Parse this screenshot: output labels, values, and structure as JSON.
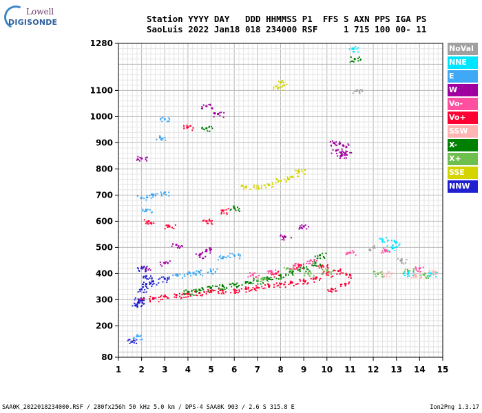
{
  "logo": {
    "line1": "Lowell",
    "line2": "DIGISONDE"
  },
  "header": {
    "row1": "Station YYYY DAY   DDD HHMMSS P1  FFS S AXN PPS IGA PS",
    "row2": "SaoLuis 2022 Jan18 018 234000 RSF     1 715 100 00- 11"
  },
  "legend": [
    {
      "label": "NoVal",
      "color": "#a0a0a0"
    },
    {
      "label": "NNE",
      "color": "#00e5ff"
    },
    {
      "label": "E",
      "color": "#3fa9f5"
    },
    {
      "label": "W",
      "color": "#a000a0"
    },
    {
      "label": "Vo-",
      "color": "#ff4fa0"
    },
    {
      "label": "Vo+",
      "color": "#ff0033"
    },
    {
      "label": "SSW",
      "color": "#ffb3b3"
    },
    {
      "label": "X-",
      "color": "#008000"
    },
    {
      "label": "X+",
      "color": "#6fbf4f"
    },
    {
      "label": "SSE",
      "color": "#d4d400"
    },
    {
      "label": "NNW",
      "color": "#2020d0"
    }
  ],
  "footer": {
    "left": "SAA0K_2022018234000.RSF / 280fx256h 50 kHz 5.0 km / DPS-4 SAA0K 903 / 2.6 S 315.8 E",
    "right": "Ion2Png 1.3.17"
  },
  "chart_data": {
    "type": "scatter",
    "xlim": [
      1,
      15
    ],
    "ylim": [
      80,
      1280
    ],
    "x_ticks": [
      1,
      2,
      3,
      4,
      5,
      6,
      7,
      8,
      9,
      10,
      11,
      12,
      13,
      14,
      15
    ],
    "y_ticks": [
      80,
      200,
      300,
      400,
      500,
      600,
      700,
      800,
      900,
      1000,
      1100,
      1280
    ],
    "grid": true,
    "legend_placement": "right",
    "series": [
      {
        "name": "Vo+",
        "color": "#ff0033",
        "points": [
          [
            2.0,
            300
          ],
          [
            2.5,
            305
          ],
          [
            3.0,
            312
          ],
          [
            3.5,
            318
          ],
          [
            4.0,
            322
          ],
          [
            4.5,
            326
          ],
          [
            5.0,
            330
          ],
          [
            5.5,
            335
          ],
          [
            6.0,
            338
          ],
          [
            6.5,
            342
          ],
          [
            7.0,
            346
          ],
          [
            7.5,
            352
          ],
          [
            8.0,
            360
          ],
          [
            8.5,
            366
          ],
          [
            9.0,
            372
          ],
          [
            9.5,
            380
          ],
          [
            10.0,
            400
          ],
          [
            10.5,
            410
          ],
          [
            11.0,
            395
          ],
          [
            10.2,
            340
          ],
          [
            10.8,
            360
          ],
          [
            9.8,
            430
          ],
          [
            8.8,
            430
          ],
          [
            7.8,
            400
          ],
          [
            4.8,
            600
          ],
          [
            5.5,
            640
          ],
          [
            3.2,
            580
          ],
          [
            4.0,
            960
          ],
          [
            2.3,
            600
          ]
        ]
      },
      {
        "name": "X-",
        "color": "#008000",
        "points": [
          [
            4.0,
            330
          ],
          [
            4.5,
            338
          ],
          [
            5.0,
            345
          ],
          [
            5.5,
            352
          ],
          [
            6.0,
            358
          ],
          [
            6.5,
            365
          ],
          [
            7.0,
            372
          ],
          [
            7.5,
            380
          ],
          [
            8.0,
            392
          ],
          [
            8.5,
            405
          ],
          [
            9.0,
            420
          ],
          [
            9.5,
            440
          ],
          [
            9.7,
            470
          ],
          [
            4.8,
            955
          ],
          [
            11.2,
            1220
          ],
          [
            6.0,
            650
          ]
        ]
      },
      {
        "name": "W",
        "color": "#a000a0",
        "points": [
          [
            2.0,
            840
          ],
          [
            10.4,
            870
          ],
          [
            10.6,
            850
          ],
          [
            10.8,
            860
          ],
          [
            10.3,
            900
          ],
          [
            10.7,
            890
          ],
          [
            4.5,
            470
          ],
          [
            4.8,
            490
          ],
          [
            3.5,
            510
          ],
          [
            9.0,
            580
          ],
          [
            8.2,
            540
          ],
          [
            5.3,
            1010
          ],
          [
            4.8,
            1040
          ],
          [
            3.0,
            440
          ],
          [
            2.2,
            420
          ]
        ]
      },
      {
        "name": "E",
        "color": "#3fa9f5",
        "points": [
          [
            2.0,
            690
          ],
          [
            2.5,
            700
          ],
          [
            3.0,
            710
          ],
          [
            2.2,
            640
          ],
          [
            3.5,
            395
          ],
          [
            4.0,
            400
          ],
          [
            4.5,
            405
          ],
          [
            5.0,
            410
          ],
          [
            5.5,
            460
          ],
          [
            6.0,
            470
          ],
          [
            2.8,
            920
          ],
          [
            3.0,
            990
          ],
          [
            1.8,
            160
          ]
        ]
      },
      {
        "name": "NNW",
        "color": "#2020d0",
        "points": [
          [
            1.8,
            280
          ],
          [
            1.9,
            300
          ],
          [
            2.0,
            340
          ],
          [
            2.2,
            360
          ],
          [
            2.5,
            370
          ],
          [
            3.0,
            380
          ],
          [
            2.0,
            420
          ],
          [
            2.2,
            390
          ],
          [
            1.6,
            140
          ],
          [
            1.9,
            290
          ]
        ]
      },
      {
        "name": "SSE",
        "color": "#d4d400",
        "points": [
          [
            6.5,
            730
          ],
          [
            7.0,
            735
          ],
          [
            7.5,
            740
          ],
          [
            8.0,
            755
          ],
          [
            8.5,
            770
          ],
          [
            8.8,
            790
          ],
          [
            7.9,
            1110
          ],
          [
            8.0,
            1130
          ]
        ]
      },
      {
        "name": "X+",
        "color": "#6fbf4f",
        "points": [
          [
            7.2,
            380
          ],
          [
            8.3,
            420
          ],
          [
            9.2,
            400
          ],
          [
            10.0,
            410
          ],
          [
            12.2,
            400
          ],
          [
            13.5,
            410
          ],
          [
            14.2,
            395
          ]
        ]
      },
      {
        "name": "Vo-",
        "color": "#ff4fa0",
        "points": [
          [
            6.8,
            395
          ],
          [
            7.6,
            410
          ],
          [
            8.6,
            430
          ],
          [
            9.3,
            450
          ],
          [
            11.0,
            480
          ],
          [
            12.5,
            490
          ],
          [
            14.0,
            420
          ]
        ]
      },
      {
        "name": "NNE",
        "color": "#00e5ff",
        "points": [
          [
            11.1,
            1260
          ],
          [
            12.8,
            500
          ],
          [
            13.0,
            520
          ],
          [
            13.5,
            400
          ],
          [
            12.4,
            530
          ],
          [
            14.5,
            400
          ]
        ]
      },
      {
        "name": "SSW",
        "color": "#ffb3b3",
        "points": [
          [
            12.6,
            400
          ],
          [
            13.8,
            395
          ],
          [
            14.6,
            405
          ]
        ]
      },
      {
        "name": "NoVal",
        "color": "#a0a0a0",
        "points": [
          [
            11.3,
            1100
          ],
          [
            12.0,
            500
          ],
          [
            13.2,
            450
          ]
        ]
      }
    ]
  }
}
